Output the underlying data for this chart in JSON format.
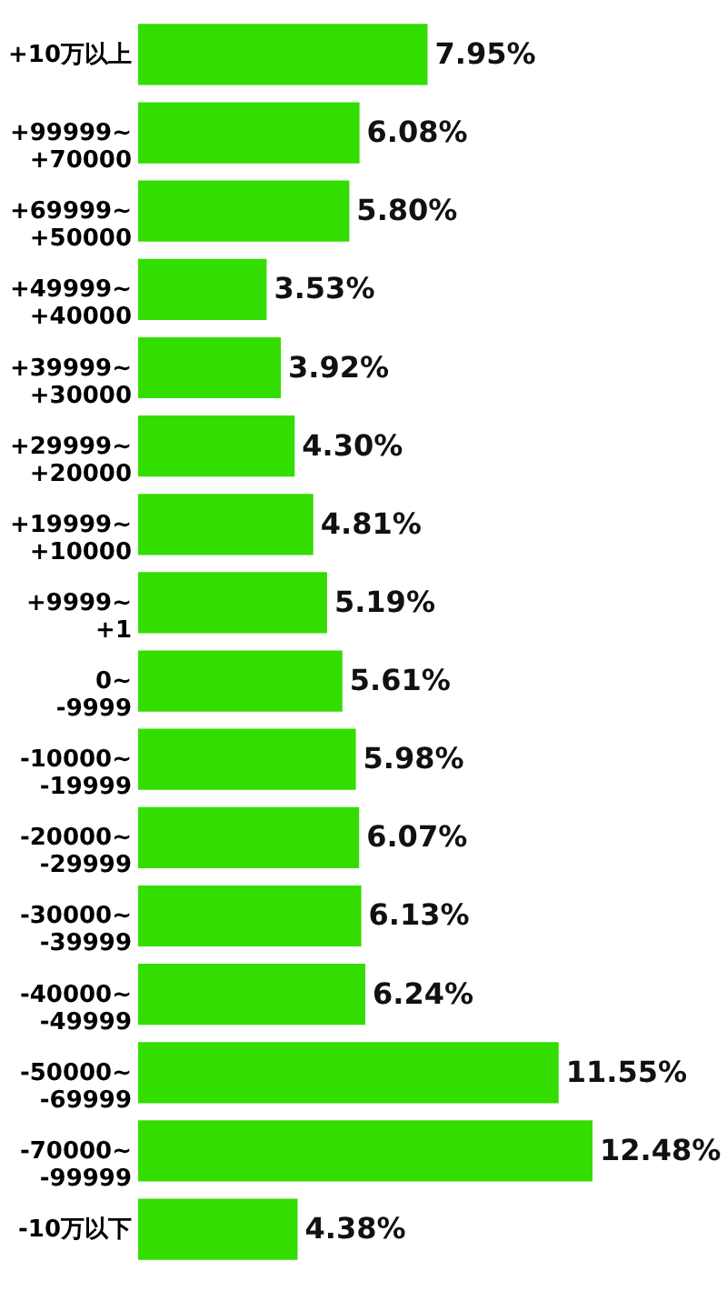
{
  "chart_data": {
    "type": "bar",
    "orientation": "horizontal",
    "categories": [
      "+10万以上",
      "+99999~\n+70000",
      "+69999~\n+50000",
      "+49999~\n+40000",
      "+39999~\n+30000",
      "+29999~\n+20000",
      "+19999~\n+10000",
      "+9999~\n+1",
      "0~\n-9999",
      "-10000~\n-19999",
      "-20000~\n-29999",
      "-30000~\n-39999",
      "-40000~\n-49999",
      "-50000~\n-69999",
      "-70000~\n-99999",
      "-10万以下"
    ],
    "values": [
      7.95,
      6.08,
      5.8,
      3.53,
      3.92,
      4.3,
      4.81,
      5.19,
      5.61,
      5.98,
      6.07,
      6.13,
      6.24,
      11.55,
      12.48,
      4.38
    ],
    "value_labels": [
      "7.95%",
      "6.08%",
      "5.80%",
      "3.53%",
      "3.92%",
      "4.30%",
      "4.81%",
      "5.19%",
      "5.61%",
      "5.98%",
      "6.07%",
      "6.13%",
      "6.24%",
      "11.55%",
      "12.48%",
      "4.38%"
    ],
    "color": "#33dd00",
    "tick_labels": "y"
  }
}
